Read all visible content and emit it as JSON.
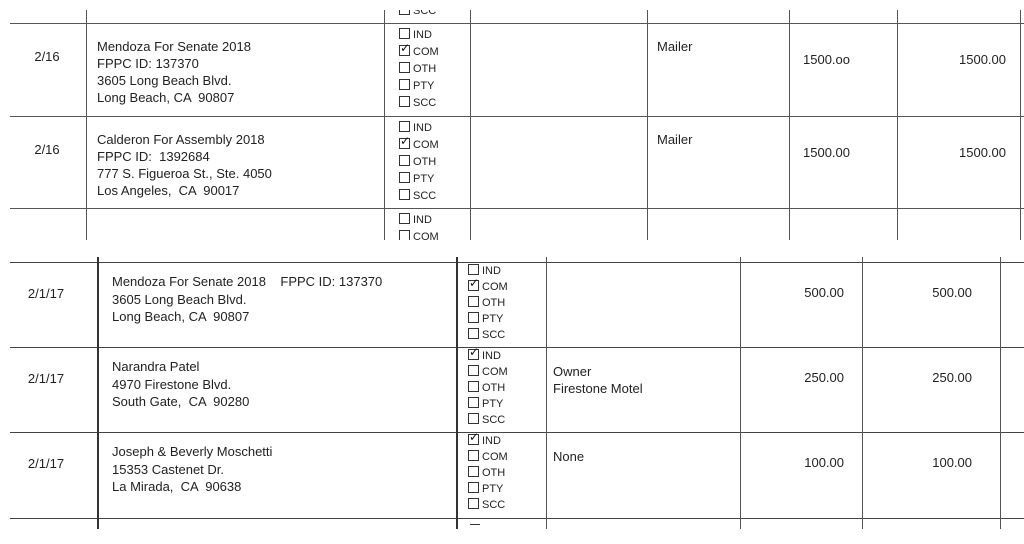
{
  "checkbox_options": [
    "IND",
    "COM",
    "OTH",
    "PTY",
    "SCC"
  ],
  "top_table": {
    "partial_top_label": "SCC",
    "rows": [
      {
        "date": "2/16",
        "name_lines": [
          "Mendoza For Senate 2018",
          "FPPC ID: 137370",
          "3605 Long Beach Blvd.",
          "Long Beach, CA  90807"
        ],
        "checked": "COM",
        "description": "Mailer",
        "amount": "1500.oo",
        "cumulative": "1500.00"
      },
      {
        "date": "2/16",
        "name_lines": [
          "Calderon For Assembly 2018",
          "FPPC ID:  1392684",
          "777 S. Figueroa St., Ste. 4050",
          "Los Angeles,  CA  90017"
        ],
        "checked": "COM",
        "description": "Mailer",
        "amount": "1500.00",
        "cumulative": "1500.00"
      }
    ],
    "partial_bottom_labels": [
      "IND",
      "COM"
    ]
  },
  "bottom_table": {
    "rows": [
      {
        "date": "2/1/17",
        "name_lines": [
          "Mendoza For Senate 2018    FPPC ID: 137370",
          "3605 Long Beach Blvd.",
          "Long Beach, CA  90807"
        ],
        "checked": "COM",
        "description": "",
        "amount": "500.00",
        "cumulative": "500.00"
      },
      {
        "date": "2/1/17",
        "name_lines": [
          "Narandra Patel",
          "4970 Firestone Blvd.",
          "South Gate,  CA  90280"
        ],
        "checked": "IND",
        "description": "Owner\nFirestone Motel",
        "amount": "250.00",
        "cumulative": "250.00"
      },
      {
        "date": "2/1/17",
        "name_lines": [
          "Joseph & Beverly Moschetti",
          "15353 Castenet Dr.",
          "La Mirada,  CA  90638"
        ],
        "checked": "IND",
        "description": "None",
        "amount": "100.00",
        "cumulative": "100.00"
      }
    ]
  }
}
